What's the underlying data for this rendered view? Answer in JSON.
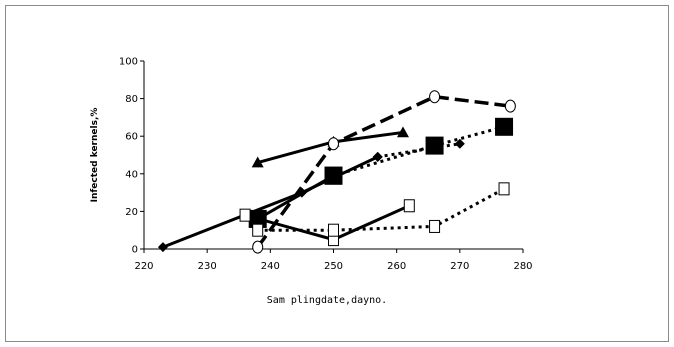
{
  "chart_data": {
    "type": "line",
    "title": "",
    "xlabel": "Sam plingdate,dayno.",
    "ylabel": "Infected kernels,%",
    "xlim": [
      220,
      280
    ],
    "ylim": [
      0,
      100
    ],
    "xticks": [
      "220",
      "230",
      "240",
      "250",
      "260",
      "270",
      "280"
    ],
    "yticks": [
      "0",
      "20",
      "40",
      "60",
      "80",
      "100"
    ],
    "grid": false,
    "legend": "none",
    "series": [
      {
        "marker": "diamond",
        "dash": "solid",
        "x": [
          223,
          245,
          257
        ],
        "y": [
          1,
          30,
          49
        ]
      },
      {
        "marker": "diamond",
        "dash": "dotted",
        "x": [
          257,
          270
        ],
        "y": [
          49,
          56
        ]
      },
      {
        "marker": "triangle",
        "dash": "solid",
        "x": [
          238,
          250,
          261
        ],
        "y": [
          46,
          57,
          62
        ]
      },
      {
        "marker": "square-filled",
        "dash": "solid",
        "x": [
          238,
          250
        ],
        "y": [
          16,
          39
        ]
      },
      {
        "marker": "square-filled",
        "dash": "dotted",
        "x": [
          250,
          266,
          277
        ],
        "y": [
          39,
          55,
          65
        ]
      },
      {
        "marker": "circle-open",
        "dash": "dashed",
        "x": [
          238,
          250,
          266,
          278
        ],
        "y": [
          1,
          56,
          81,
          76
        ]
      },
      {
        "marker": "square-open",
        "dash": "solid",
        "x": [
          236,
          250,
          262
        ],
        "y": [
          18,
          5,
          23
        ]
      },
      {
        "marker": "square-open",
        "dash": "dotted",
        "x": [
          238,
          250,
          266,
          277
        ],
        "y": [
          10,
          10,
          12,
          32
        ]
      }
    ],
    "colors": {
      "line": "#000000",
      "frame": "#8a8a8a"
    }
  }
}
